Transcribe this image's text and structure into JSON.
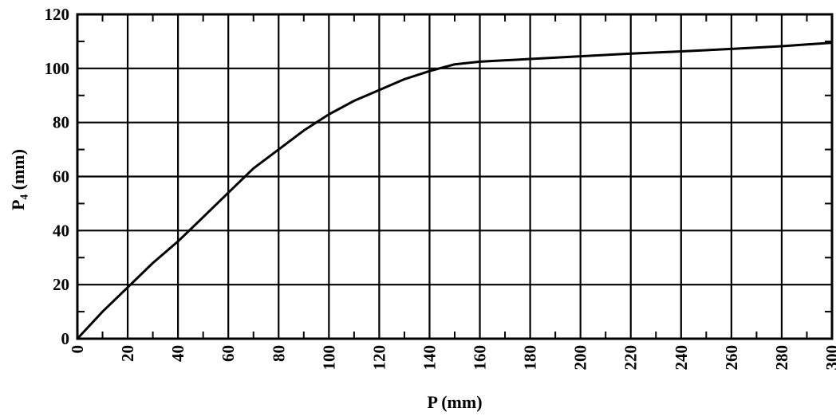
{
  "chart_data": {
    "type": "line",
    "title": "",
    "xlabel": "P (mm)",
    "ylabel": "P₄ (mm)",
    "xlim": [
      0,
      300
    ],
    "ylim": [
      0,
      120
    ],
    "x_major_step": 20,
    "y_major_step": 20,
    "x_minor_step": 10,
    "y_minor_step": 10,
    "grid": true,
    "legend": "none",
    "line_color": "#000000",
    "x_tick_labels": [
      "0",
      "20",
      "40",
      "60",
      "80",
      "100",
      "120",
      "140",
      "160",
      "180",
      "200",
      "220",
      "240",
      "260",
      "280",
      "300"
    ],
    "y_tick_labels": [
      "0",
      "20",
      "40",
      "60",
      "80",
      "100",
      "120"
    ],
    "series": [
      {
        "x": [
          0,
          10,
          20,
          30,
          40,
          50,
          60,
          70,
          80,
          90,
          100,
          110,
          120,
          130,
          140,
          150,
          160,
          180,
          200,
          220,
          240,
          260,
          280,
          300
        ],
        "y": [
          0,
          10,
          19,
          28,
          36,
          45,
          54,
          63,
          70,
          77,
          83,
          88,
          92,
          96,
          99,
          101.5,
          102.5,
          103.5,
          104.5,
          105.5,
          106.3,
          107.2,
          108.2,
          109.5
        ]
      }
    ]
  }
}
